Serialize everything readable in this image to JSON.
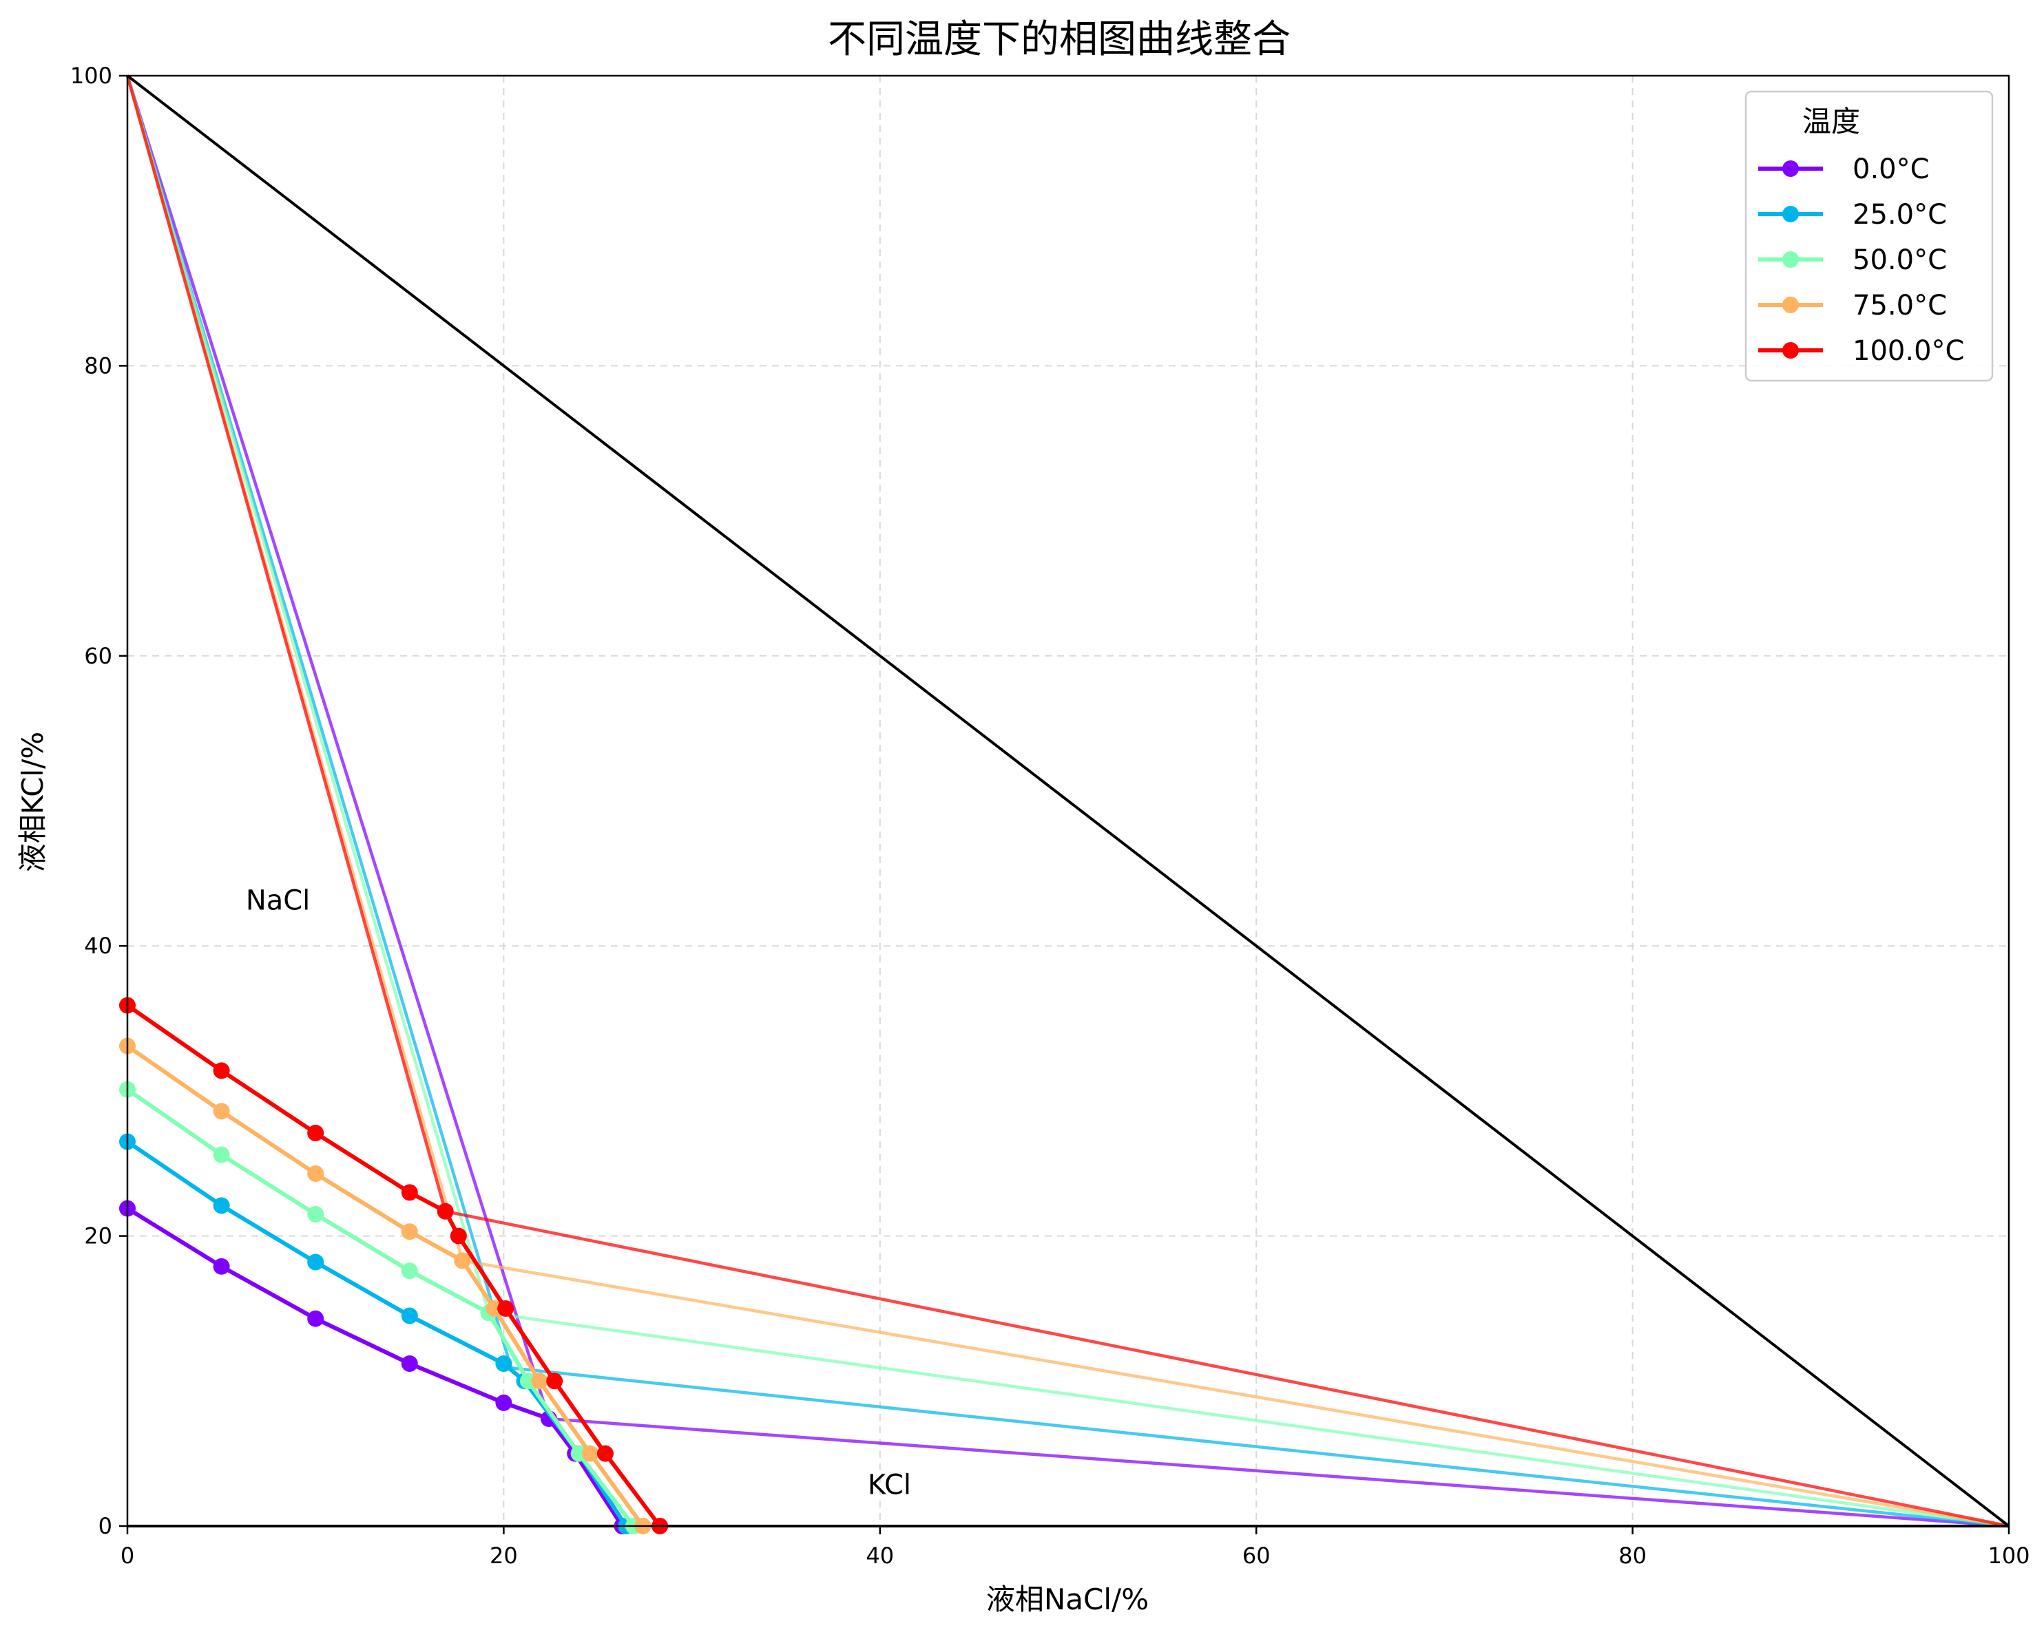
{
  "chart_data": {
    "type": "line",
    "title": "不同温度下的相图曲线整合",
    "xlabel": "液相NaCl/%",
    "ylabel": "液相KCl/%",
    "xlim": [
      0,
      100
    ],
    "ylim": [
      0,
      100
    ],
    "xticks": [
      0,
      20,
      40,
      60,
      80,
      100
    ],
    "yticks": [
      0,
      20,
      40,
      60,
      80,
      100
    ],
    "grid": true,
    "legend": {
      "title": "温度",
      "position": "top-right"
    },
    "annotations": [
      {
        "text": "NaCl",
        "x": 8,
        "y": 42.5
      },
      {
        "text": "KCl",
        "x": 40.5,
        "y": 2.2
      }
    ],
    "boundary_line": {
      "color": "#000000",
      "points": [
        [
          0,
          100
        ],
        [
          100,
          0
        ]
      ]
    },
    "series": [
      {
        "name": "0.0°C",
        "color": "#8000ff",
        "points": [
          [
            0,
            21.9
          ],
          [
            5,
            17.9
          ],
          [
            10,
            14.3
          ],
          [
            15,
            11.2
          ],
          [
            20,
            8.5
          ],
          [
            22.4,
            7.4
          ],
          [
            23.8,
            5.0
          ],
          [
            26.3,
            0
          ]
        ],
        "invariant": [
          22.4,
          7.4
        ],
        "tielines": [
          [
            [
              0,
              100
            ],
            [
              22.4,
              7.4
            ]
          ],
          [
            [
              22.4,
              7.4
            ],
            [
              100,
              0
            ]
          ]
        ]
      },
      {
        "name": "25.0°C",
        "color": "#00b5eb",
        "points": [
          [
            0,
            26.5
          ],
          [
            5,
            22.1
          ],
          [
            10,
            18.2
          ],
          [
            15,
            14.5
          ],
          [
            20,
            11.2
          ],
          [
            21.1,
            10.0
          ],
          [
            24.0,
            5.0
          ],
          [
            26.5,
            0
          ]
        ],
        "invariant": [
          20.4,
          10.9
        ],
        "tielines": [
          [
            [
              0,
              100
            ],
            [
              20.4,
              10.9
            ]
          ],
          [
            [
              20.4,
              10.9
            ],
            [
              100,
              0
            ]
          ]
        ]
      },
      {
        "name": "50.0°C",
        "color": "#80ffb4",
        "points": [
          [
            0,
            30.1
          ],
          [
            5,
            25.6
          ],
          [
            10,
            21.5
          ],
          [
            15,
            17.6
          ],
          [
            19.2,
            14.7
          ],
          [
            21.3,
            10.0
          ],
          [
            24.0,
            5.0
          ],
          [
            26.9,
            0
          ]
        ],
        "invariant": [
          19.2,
          14.7
        ],
        "tielines": [
          [
            [
              0,
              100
            ],
            [
              19.2,
              14.7
            ]
          ],
          [
            [
              19.2,
              14.7
            ],
            [
              100,
              0
            ]
          ]
        ]
      },
      {
        "name": "75.0°C",
        "color": "#ffb360",
        "points": [
          [
            0,
            33.1
          ],
          [
            5,
            28.6
          ],
          [
            10,
            24.3
          ],
          [
            15,
            20.3
          ],
          [
            17.8,
            18.3
          ],
          [
            19.5,
            15.0
          ],
          [
            21.9,
            10.0
          ],
          [
            24.6,
            5.0
          ],
          [
            27.4,
            0
          ]
        ],
        "invariant": [
          17.8,
          18.3
        ],
        "tielines": [
          [
            [
              0,
              100
            ],
            [
              17.8,
              18.3
            ]
          ],
          [
            [
              17.8,
              18.3
            ],
            [
              100,
              0
            ]
          ]
        ]
      },
      {
        "name": "100.0°C",
        "color": "#ff0000",
        "points": [
          [
            0,
            35.9
          ],
          [
            5,
            31.4
          ],
          [
            10,
            27.1
          ],
          [
            15,
            23.0
          ],
          [
            16.9,
            21.7
          ],
          [
            17.6,
            20.0
          ],
          [
            20.1,
            15.0
          ],
          [
            22.7,
            10.0
          ],
          [
            25.4,
            5.0
          ],
          [
            28.3,
            0
          ]
        ],
        "invariant": [
          16.9,
          21.7
        ],
        "tielines": [
          [
            [
              0,
              100
            ],
            [
              16.9,
              21.7
            ]
          ],
          [
            [
              16.9,
              21.7
            ],
            [
              100,
              0
            ]
          ]
        ]
      }
    ]
  }
}
